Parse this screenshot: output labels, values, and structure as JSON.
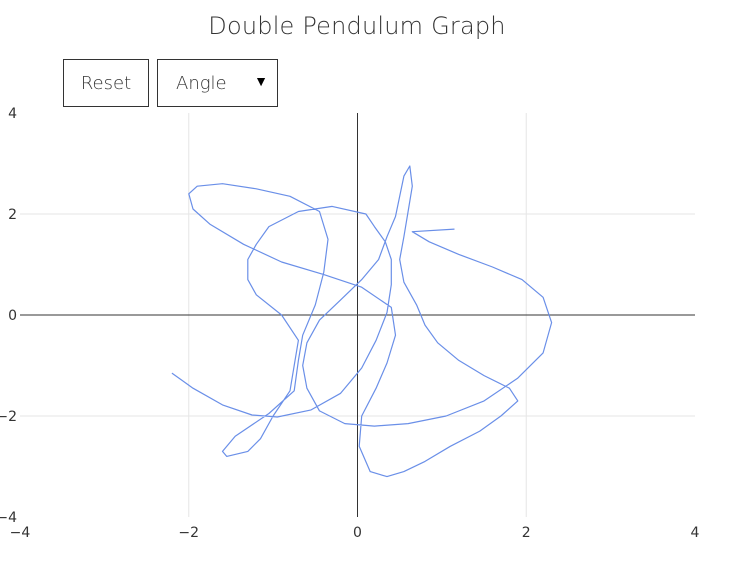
{
  "title": "Double Pendulum Graph",
  "controls": {
    "reset_label": "Reset",
    "mode_select_value": "Angle"
  },
  "colors": {
    "trace": "#6a8fe8",
    "axis": "#333333",
    "grid": "#e6e6e6"
  },
  "chart_data": {
    "type": "line",
    "title": "Double Pendulum Graph",
    "xlabel": "",
    "ylabel": "",
    "xlim": [
      -4,
      4
    ],
    "ylim": [
      -4,
      4
    ],
    "x_ticks": [
      "−4",
      "−2",
      "0",
      "2",
      "4"
    ],
    "y_ticks": [
      "4",
      "2",
      "0",
      "−2",
      "−4"
    ],
    "grid": true,
    "series": [
      {
        "x": [
          -2.2,
          -1.95,
          -1.6,
          -1.25,
          -0.95,
          -0.55,
          -0.2,
          0.05,
          0.22,
          0.35,
          0.4,
          0.4,
          0.33,
          0.2,
          0.1,
          -0.3,
          -0.7,
          -1.05,
          -1.2,
          -1.3,
          -1.3,
          -1.2,
          -0.9,
          -0.7,
          -0.75,
          -0.8,
          -1.0,
          -1.15,
          -1.3,
          -1.55,
          -1.6,
          -1.45,
          -1.05,
          -0.75,
          -0.7,
          -0.65,
          -0.5,
          -0.4,
          -0.35,
          -0.45,
          -0.8,
          -1.2,
          -1.6,
          -1.9,
          -2.0,
          -1.95,
          -1.75,
          -1.35,
          -0.9,
          -0.4,
          0.05,
          0.4,
          0.45,
          0.35,
          0.22,
          0.05,
          0.02,
          0.15,
          0.35,
          0.55,
          0.8,
          1.1,
          1.45,
          1.7,
          1.9,
          1.8,
          1.5,
          1.2,
          0.95,
          0.8,
          0.7,
          0.55,
          0.5,
          0.55,
          0.6,
          0.65,
          0.62,
          0.55,
          0.5,
          0.45,
          0.35,
          0.25,
          0.05,
          -0.2,
          -0.45,
          -0.6,
          -0.65,
          -0.6,
          -0.45,
          -0.15,
          0.2,
          0.6,
          1.05,
          1.5,
          1.9,
          2.2,
          2.3,
          2.2,
          1.95,
          1.6,
          1.2,
          0.85,
          0.65,
          1.15
        ],
        "y": [
          -1.15,
          -1.45,
          -1.78,
          -1.98,
          -2.02,
          -1.88,
          -1.55,
          -1.05,
          -0.5,
          0.05,
          0.6,
          1.1,
          1.45,
          1.75,
          2.0,
          2.15,
          2.05,
          1.75,
          1.4,
          1.1,
          0.7,
          0.4,
          0.0,
          -0.5,
          -1.0,
          -1.5,
          -2.0,
          -2.45,
          -2.7,
          -2.8,
          -2.7,
          -2.4,
          -1.95,
          -1.5,
          -0.9,
          -0.4,
          0.2,
          0.85,
          1.5,
          2.05,
          2.35,
          2.5,
          2.6,
          2.55,
          2.4,
          2.1,
          1.8,
          1.4,
          1.05,
          0.8,
          0.55,
          0.15,
          -0.4,
          -0.95,
          -1.45,
          -2.0,
          -2.6,
          -3.1,
          -3.2,
          -3.1,
          -2.9,
          -2.6,
          -2.3,
          -2.0,
          -1.7,
          -1.45,
          -1.2,
          -0.9,
          -0.55,
          -0.2,
          0.2,
          0.65,
          1.1,
          1.55,
          2.05,
          2.55,
          2.95,
          2.75,
          2.35,
          1.95,
          1.55,
          1.1,
          0.7,
          0.3,
          -0.1,
          -0.55,
          -1.0,
          -1.45,
          -1.9,
          -2.15,
          -2.2,
          -2.15,
          -2.0,
          -1.7,
          -1.25,
          -0.75,
          -0.15,
          0.35,
          0.7,
          0.95,
          1.2,
          1.45,
          1.65,
          1.7
        ]
      }
    ]
  }
}
